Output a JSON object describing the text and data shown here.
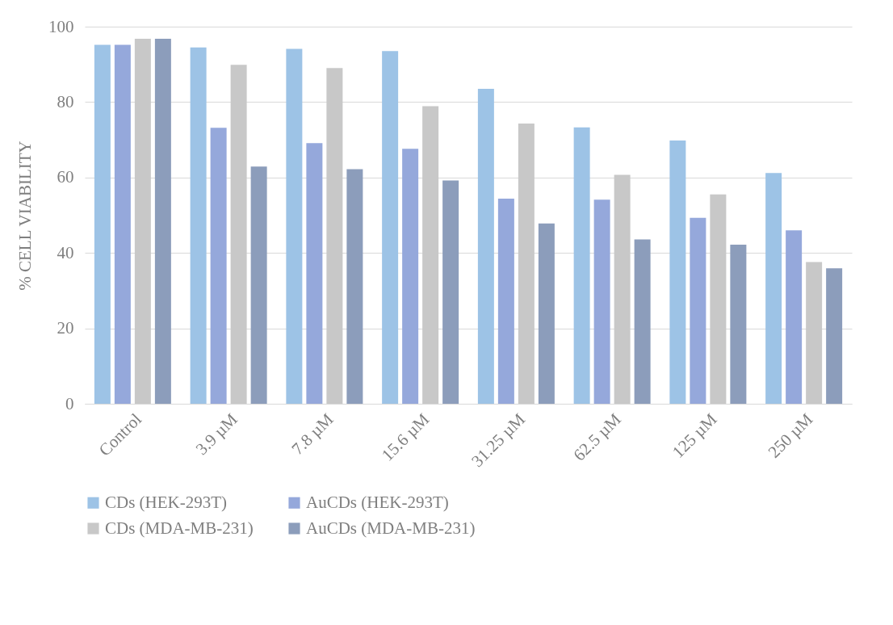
{
  "chart_data": {
    "type": "bar",
    "ylabel": "% CELL VIABILITY",
    "categories": [
      "Control",
      "3.9 µM",
      "7.8 µM",
      "15.6 µM",
      "31.25 µM",
      "62.5 µM",
      "125 µM",
      "250 µM"
    ],
    "series": [
      {
        "name": "CDs (HEK-293T)",
        "color": "#9dc3e6",
        "values": [
          95.2,
          94.5,
          94.1,
          93.5,
          83.5,
          73.3,
          69.8,
          61.2
        ]
      },
      {
        "name": "AuCDs (HEK-293T)",
        "color": "#95a8db",
        "values": [
          95.2,
          73.2,
          69.1,
          67.6,
          54.4,
          54.1,
          49.3,
          46.0
        ]
      },
      {
        "name": "CDs (MDA-MB-231)",
        "color": "#c8c8c8",
        "values": [
          96.8,
          89.9,
          89.0,
          78.9,
          74.3,
          60.7,
          55.5,
          37.6
        ]
      },
      {
        "name": "AuCDs (MDA-MB-231)",
        "color": "#8c9dbb",
        "values": [
          96.8,
          62.9,
          62.2,
          59.2,
          47.8,
          43.6,
          42.2,
          35.9
        ]
      }
    ],
    "ylim": [
      0,
      100
    ],
    "yticks": [
      0,
      20,
      40,
      60,
      80,
      100
    ],
    "grid": "y",
    "legend": "bottom"
  }
}
